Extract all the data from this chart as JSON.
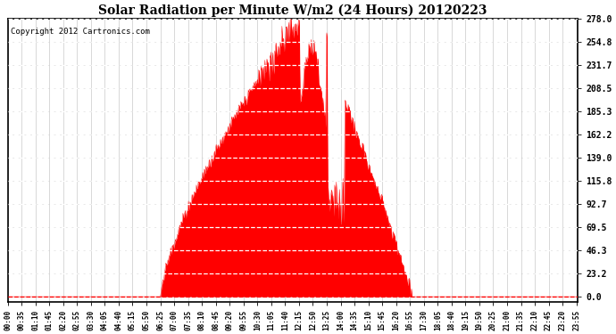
{
  "title": "Solar Radiation per Minute W/m2 (24 Hours) 20120223",
  "copyright": "Copyright 2012 Cartronics.com",
  "fill_color": "#FF0000",
  "line_color": "#FF0000",
  "background_color": "#FFFFFF",
  "grid_color": "#BBBBBB",
  "dashed_line_color": "#FF0000",
  "yticks": [
    0.0,
    23.2,
    46.3,
    69.5,
    92.7,
    115.8,
    139.0,
    162.2,
    185.3,
    208.5,
    231.7,
    254.8,
    278.0
  ],
  "ymax": 278.0,
  "ymin": -5.0,
  "xtick_labels": [
    "00:00",
    "00:35",
    "01:10",
    "01:45",
    "02:20",
    "02:55",
    "03:30",
    "04:05",
    "04:40",
    "05:15",
    "05:50",
    "06:25",
    "07:00",
    "07:35",
    "08:10",
    "08:45",
    "09:20",
    "09:55",
    "10:30",
    "11:05",
    "11:40",
    "12:15",
    "12:50",
    "13:25",
    "14:00",
    "14:35",
    "15:10",
    "15:45",
    "16:20",
    "16:55",
    "17:30",
    "18:05",
    "18:40",
    "19:15",
    "19:50",
    "20:25",
    "21:00",
    "21:35",
    "22:10",
    "22:45",
    "23:20",
    "23:55"
  ]
}
